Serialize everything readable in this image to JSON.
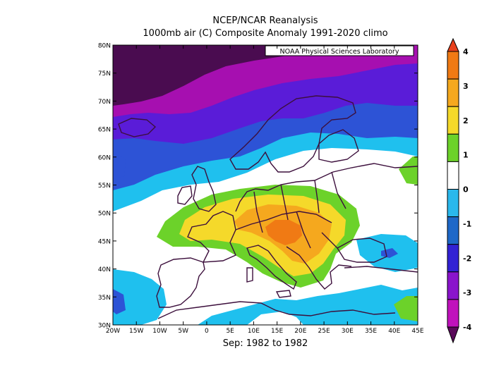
{
  "title_line1": "NCEP/NCAR Reanalysis",
  "title_line2": "1000mb air (C) Composite Anomaly 1991-2020 climo",
  "subtitle": "Sep: 1982 to 1982",
  "credit": "NOAA Physical Sciences Laboratory",
  "map": {
    "lon_range": [
      -20,
      45
    ],
    "lat_range": [
      30,
      80
    ],
    "lon_ticks": [
      "20W",
      "15W",
      "10W",
      "5W",
      "0",
      "5E",
      "10E",
      "15E",
      "20E",
      "25E",
      "30E",
      "35E",
      "40E",
      "45E"
    ],
    "lat_ticks": [
      "30N",
      "35N",
      "40N",
      "45N",
      "50N",
      "55N",
      "60N",
      "65N",
      "70N",
      "75N",
      "80N"
    ]
  },
  "colorbar": {
    "labels": [
      "4",
      "3",
      "2",
      "1",
      "0",
      "-1",
      "-2",
      "-3",
      "-4"
    ],
    "colors": [
      "#e8401c",
      "#f07a14",
      "#f5a81e",
      "#f5d92a",
      "#6cd22a",
      "#ffffff",
      "#2ab8ec",
      "#1e68c8",
      "#3222d4",
      "#8a14cc",
      "#c012bc",
      "#5a0a5a"
    ]
  },
  "colors": {
    "deep_purple": "#4a0c50",
    "magenta": "#a60fb0",
    "violet": "#5a1cd8",
    "blue": "#2d53d6",
    "cyan": "#1fc0ee",
    "white": "#ffffff",
    "green": "#6cd22a",
    "yellow": "#f5d92a",
    "orange": "#f5a81e",
    "red_orange": "#f07a14",
    "coast": "#3c0f3c"
  }
}
